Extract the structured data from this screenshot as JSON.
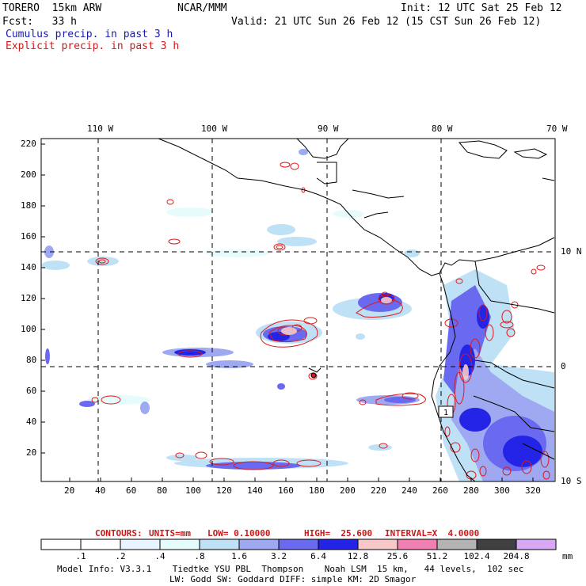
{
  "header": {
    "model": "TORERO  15km ARW",
    "org": "NCAR/MMM",
    "init": "Init: 12 UTC Sat 25 Feb 12",
    "fcst": "Fcst:   33 h",
    "valid": "Valid: 21 UTC Sun 26 Feb 12 (15 CST Sun 26 Feb 12)",
    "cumulus": "Cumulus precip. in past 3 h",
    "explicit": "Explicit precip. in past 3 h"
  },
  "map": {
    "lon_labels": [
      "110 W",
      "100 W",
      "90 W",
      "80 W",
      "70 W"
    ],
    "lat_labels": [
      "10 N",
      "0",
      "10 S"
    ],
    "y_ticks": [
      "220",
      "200",
      "180",
      "160",
      "140",
      "120",
      "100",
      "80",
      "60",
      "40",
      "20"
    ],
    "x_ticks": [
      "20",
      "40",
      "60",
      "80",
      "100",
      "120",
      "140",
      "160",
      "180",
      "200",
      "220",
      "240",
      "260",
      "280",
      "300",
      "320"
    ],
    "station_label": "1"
  },
  "contours": {
    "label": "CONTOURS:",
    "units": "UNITS=mm",
    "low": "LOW= 0.10000",
    "high": "HIGH=  25.600",
    "interval": "INTERVAL=X  4.0000"
  },
  "legend": {
    "unit": "mm",
    "colors": [
      "#ffffff",
      "#ffffff",
      "#e8f4ff",
      "#e6fcfc",
      "#bfe1f6",
      "#9ea9f2",
      "#6a6af0",
      "#2424e6",
      "#f7c8c8",
      "#f080b0",
      "#b4b4b4",
      "#404040",
      "#d8a8f4"
    ],
    "labels": [
      ".1",
      ".2",
      ".4",
      ".8",
      "1.6",
      "3.2",
      "6.4",
      "12.8",
      "25.6",
      "51.2",
      "102.4",
      "204.8"
    ]
  },
  "footer": {
    "line1": "Model Info: V3.3.1    Tiedtke YSU PBL  Thompson    Noah LSM  15 km,   44 levels,  102 sec",
    "line2": "LW: Godd SW: Goddard DIFF: simple KM: 2D Smagor"
  }
}
